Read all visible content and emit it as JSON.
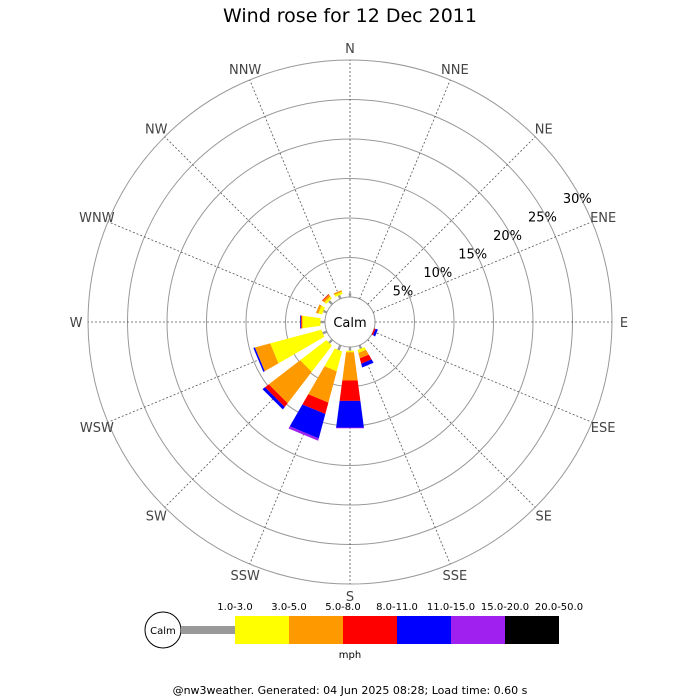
{
  "page": {
    "title": "Wind rose for 12 Dec 2011",
    "footer": "@nw3weather. Generated: 04 Jun 2025 08:28; Load time: 0.60 s"
  },
  "chart_data": {
    "type": "wind-rose",
    "title": "Wind rose for 12 Dec 2011",
    "directions": [
      "N",
      "NNE",
      "NE",
      "ENE",
      "E",
      "ESE",
      "SE",
      "SSE",
      "S",
      "SSW",
      "SW",
      "WSW",
      "W",
      "WNW",
      "NW",
      "NNW"
    ],
    "ring_labels": [
      "5%",
      "10%",
      "15%",
      "20%",
      "25%",
      "30%"
    ],
    "ring_values": [
      5,
      10,
      15,
      20,
      25,
      30
    ],
    "r_max": 30,
    "calm_label": "Calm",
    "unit": "mph",
    "bins": [
      {
        "label": "1.0-3.0",
        "color": "#999999"
      },
      {
        "label": "3.0-5.0",
        "color": "#ffff00"
      },
      {
        "label": "5.0-8.0",
        "color": "#ff9900"
      },
      {
        "label": "8.0-11.0",
        "color": "#ff0000"
      },
      {
        "label": "11.0-15.0",
        "color": "#0000ff"
      },
      {
        "label": "15.0-20.0",
        "color": "#a020f0"
      },
      {
        "label": "20.0-50.0",
        "color": "#000000"
      }
    ],
    "calm_ring_color": "#999999",
    "series": [
      {
        "direction": "N",
        "values": [
          0.5,
          0,
          0,
          0,
          0,
          0,
          0
        ]
      },
      {
        "direction": "NNE",
        "values": [
          0,
          0,
          0,
          0,
          0,
          0,
          0
        ]
      },
      {
        "direction": "NE",
        "values": [
          0,
          0,
          0,
          0,
          0,
          0,
          0
        ]
      },
      {
        "direction": "ENE",
        "values": [
          0,
          0,
          0,
          0,
          0,
          0,
          0
        ]
      },
      {
        "direction": "E",
        "values": [
          0,
          0,
          0,
          0,
          0,
          0,
          0
        ]
      },
      {
        "direction": "ESE",
        "values": [
          0,
          0,
          0,
          0.2,
          0.3,
          0,
          0
        ]
      },
      {
        "direction": "SE",
        "values": [
          0,
          0,
          0,
          0,
          0,
          0,
          0
        ]
      },
      {
        "direction": "SSE",
        "values": [
          0.5,
          0.4,
          0.7,
          0.7,
          0.5,
          0,
          0
        ]
      },
      {
        "direction": "S",
        "values": [
          0.5,
          0.2,
          3.6,
          2.6,
          3.4,
          0.1,
          0
        ]
      },
      {
        "direction": "SSW",
        "values": [
          0.7,
          2.6,
          4.1,
          1.5,
          3.2,
          0.3,
          0
        ]
      },
      {
        "direction": "SW",
        "values": [
          0.6,
          4.2,
          5.0,
          0.6,
          0.4,
          0,
          0
        ]
      },
      {
        "direction": "WSW",
        "values": [
          0.6,
          6.7,
          2.0,
          0,
          0.2,
          0,
          0
        ]
      },
      {
        "direction": "W",
        "values": [
          0.6,
          2.3,
          0.1,
          0.1,
          0.1,
          0,
          0
        ]
      },
      {
        "direction": "WNW",
        "values": [
          0.5,
          0.5,
          0.3,
          0,
          0,
          0,
          0
        ]
      },
      {
        "direction": "NW",
        "values": [
          0.6,
          0.3,
          0.3,
          0.1,
          0,
          0,
          0
        ]
      },
      {
        "direction": "NNW",
        "values": [
          0.5,
          0.3,
          0.2,
          0,
          0,
          0,
          0
        ]
      }
    ]
  }
}
